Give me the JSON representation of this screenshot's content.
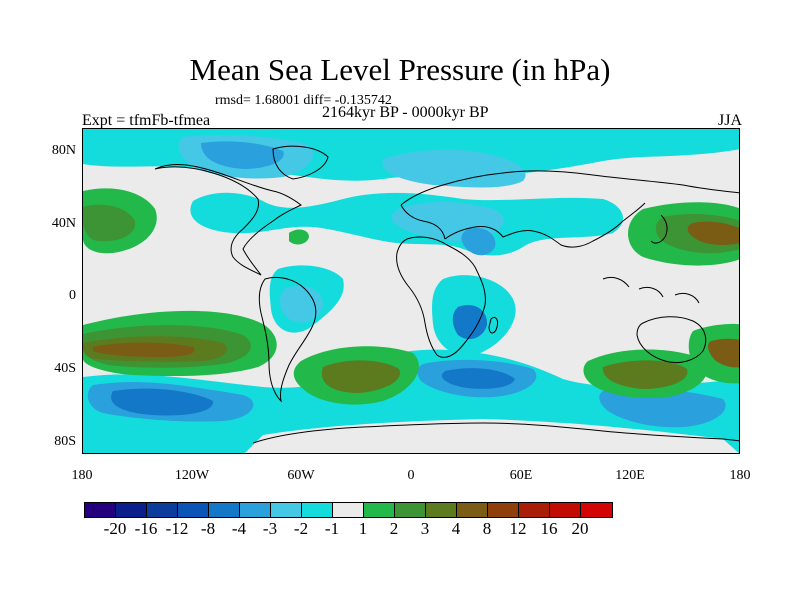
{
  "title": "Mean Sea Level Pressure (in hPa)",
  "stats_line": "rmsd= 1.68001 diff= -0.135742",
  "period": "2164kyr BP - 0000kyr BP",
  "experiment": "Expt = tfmFb-tfmea",
  "season": "JJA",
  "y_axis_labels": [
    "80N",
    "40N",
    "0",
    "40S",
    "80S"
  ],
  "x_axis_labels": [
    "180",
    "120W",
    "60W",
    "0",
    "60E",
    "120E",
    "180"
  ],
  "colorbar": {
    "labels": [
      "-20",
      "-16",
      "-12",
      "-8",
      "-4",
      "-3",
      "-2",
      "-1",
      "1",
      "2",
      "3",
      "4",
      "8",
      "12",
      "16",
      "20"
    ],
    "colors": [
      "#24007f",
      "#0a1f8c",
      "#0c3c9c",
      "#0a55b5",
      "#1478c8",
      "#2aa0dc",
      "#44c8e6",
      "#15dcdc",
      "#ebebeb",
      "#22b94a",
      "#3d9434",
      "#5c7a1e",
      "#7a5c14",
      "#8f3f0c",
      "#a81e08",
      "#c10c04",
      "#d20404"
    ]
  }
}
